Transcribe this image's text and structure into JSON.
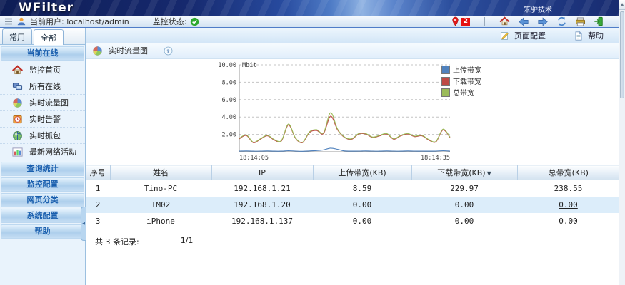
{
  "banner": {
    "title": "WFilter",
    "brand": "笨驴技术"
  },
  "toolbar": {
    "current_user_label": "当前用户: localhost/admin",
    "status_label": "监控状态:",
    "alert_count": "2"
  },
  "page_toolbar": {
    "page_config": "页面配置",
    "help": "帮助"
  },
  "sidebar": {
    "tabs": [
      {
        "label": "常用",
        "active": false
      },
      {
        "label": "全部",
        "active": true
      }
    ],
    "section_current": "当前在线",
    "items": [
      {
        "id": "monitor-home",
        "label": "监控首页",
        "icon": "home-icon"
      },
      {
        "id": "all-online",
        "label": "所有在线",
        "icon": "computers-icon"
      },
      {
        "id": "realtime-traffic",
        "label": "实时流量图",
        "icon": "pie-icon"
      },
      {
        "id": "realtime-alert",
        "label": "实时告警",
        "icon": "alarm-icon"
      },
      {
        "id": "realtime-capture",
        "label": "实时抓包",
        "icon": "globe-icon"
      },
      {
        "id": "latest-activity",
        "label": "最新网络活动",
        "icon": "chart-icon"
      }
    ],
    "sections": [
      {
        "id": "query-stats",
        "label": "查询统计"
      },
      {
        "id": "monitor-config",
        "label": "监控配置"
      },
      {
        "id": "web-category",
        "label": "网页分类"
      },
      {
        "id": "system-config",
        "label": "系统配置"
      },
      {
        "id": "help",
        "label": "帮助"
      }
    ]
  },
  "content": {
    "title": "实时流量图"
  },
  "chart_data": {
    "type": "line",
    "title": "实时流量图",
    "unit_label": "Mbit",
    "x_start": "18:14:05",
    "x_end": "18:14:35",
    "ylim": [
      0,
      10
    ],
    "ytick_values": [
      2,
      4,
      6,
      8,
      10
    ],
    "grid": true,
    "legend_position": "right",
    "series": [
      {
        "name": "上传带宽",
        "color": "#4f81bd",
        "values": [
          0.08,
          0.1,
          0.07,
          0.08,
          0.1,
          0.07,
          0.07,
          0.12,
          0.08,
          0.06,
          0.1,
          0.14,
          0.22,
          0.42,
          0.28,
          0.1,
          0.08,
          0.08,
          0.1,
          0.08,
          0.07,
          0.1,
          0.08,
          0.07,
          0.1,
          0.08,
          0.08,
          0.07,
          0.08,
          0.12,
          0.08
        ]
      },
      {
        "name": "下载带宽",
        "color": "#bf4a45",
        "values": [
          1.48,
          1.88,
          1.04,
          1.44,
          1.84,
          1.34,
          1.24,
          3.1,
          1.54,
          1.05,
          2.22,
          2.45,
          2.1,
          4.1,
          2.5,
          1.64,
          1.44,
          2.04,
          2.04,
          1.64,
          1.84,
          2.04,
          1.44,
          1.84,
          2.04,
          1.74,
          1.84,
          1.34,
          1.14,
          2.52,
          1.64
        ]
      },
      {
        "name": "总带宽",
        "color": "#9bbb59",
        "values": [
          1.55,
          1.95,
          1.1,
          1.5,
          1.9,
          1.4,
          1.3,
          3.2,
          1.6,
          1.1,
          2.3,
          2.55,
          2.2,
          4.5,
          2.6,
          1.7,
          1.5,
          2.1,
          2.1,
          1.7,
          1.9,
          2.1,
          1.5,
          1.9,
          2.1,
          1.8,
          1.9,
          1.4,
          1.2,
          2.6,
          1.7
        ]
      }
    ]
  },
  "table": {
    "headers": [
      "序号",
      "姓名",
      "IP",
      "上传带宽(KB)",
      "下载带宽(KB)",
      "总带宽(KB)"
    ],
    "sort_column_index": 4,
    "rows": [
      {
        "no": "1",
        "name": "Tino-PC",
        "ip": "192.168.1.21",
        "up": "8.59",
        "down": "229.97",
        "total": "238.55",
        "total_link": true
      },
      {
        "no": "2",
        "name": "IM02",
        "ip": "192.168.1.20",
        "up": "0.00",
        "down": "0.00",
        "total": "0.00",
        "total_link": true
      },
      {
        "no": "3",
        "name": "iPhone",
        "ip": "192.168.1.137",
        "up": "0.00",
        "down": "0.00",
        "total": "0.00",
        "total_link": false
      }
    ],
    "footer": {
      "total_label": "共 3 条记录:",
      "page": "1/1"
    }
  },
  "icons": {
    "sort_desc": "▼",
    "scroll_up": "▲",
    "collapse": "◀"
  },
  "colors": {
    "status_ok": "#2ea82e",
    "alert_red": "#e51212",
    "alt_row": "#dcedfa",
    "toolbar_line": "#4f7cc8"
  }
}
